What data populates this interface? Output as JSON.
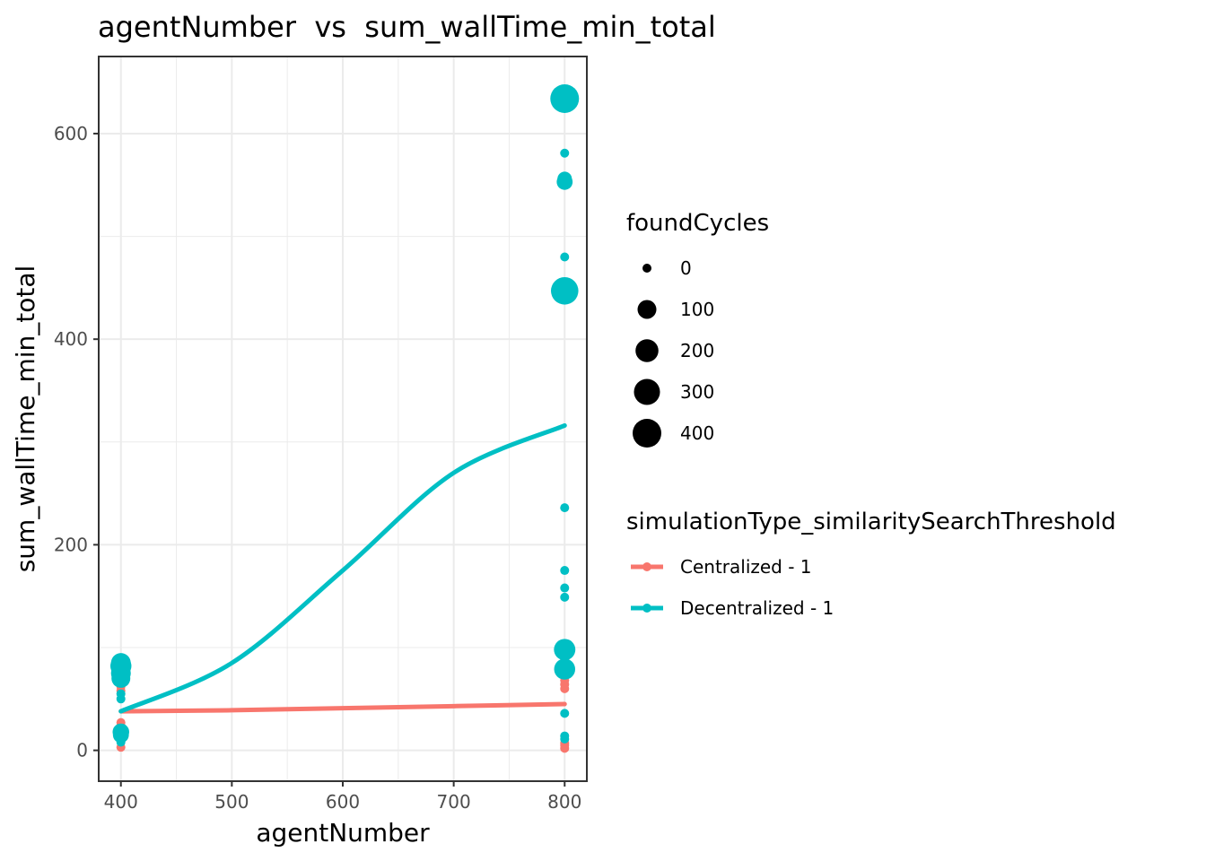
{
  "chart_data": {
    "type": "scatter",
    "title": "agentNumber  vs  sum_wallTime_min_total",
    "xlabel": "agentNumber",
    "ylabel": "sum_wallTime_min_total",
    "xlim": [
      380,
      820
    ],
    "ylim": [
      -30,
      675
    ],
    "xticks": [
      400,
      500,
      600,
      700,
      800
    ],
    "xtick_labels": [
      "400",
      "500",
      "600",
      "700",
      "800"
    ],
    "yticks": [
      0,
      200,
      400,
      600
    ],
    "ytick_labels": [
      "0",
      "200",
      "400",
      "600"
    ],
    "grid": true,
    "legend_position": "right",
    "size_legend": {
      "title": "foundCycles",
      "entries": [
        {
          "label": "0",
          "value": 0
        },
        {
          "label": "100",
          "value": 100
        },
        {
          "label": "200",
          "value": 200
        },
        {
          "label": "300",
          "value": 300
        },
        {
          "label": "400",
          "value": 400
        }
      ]
    },
    "color_legend": {
      "title": "simulationType_similaritySearchThreshold",
      "entries": [
        {
          "label": "Centralized - 1",
          "color": "#F8766D"
        },
        {
          "label": "Decentralized - 1",
          "color": "#00BFC4"
        }
      ]
    },
    "series": [
      {
        "name": "Centralized - 1",
        "color": "#F8766D",
        "points": [
          {
            "x": 400,
            "y": 3,
            "foundCycles": 0
          },
          {
            "x": 400,
            "y": 12,
            "foundCycles": 0
          },
          {
            "x": 400,
            "y": 20,
            "foundCycles": 0
          },
          {
            "x": 400,
            "y": 24,
            "foundCycles": 0
          },
          {
            "x": 400,
            "y": 27,
            "foundCycles": 0
          },
          {
            "x": 400,
            "y": 58,
            "foundCycles": 0
          },
          {
            "x": 400,
            "y": 62,
            "foundCycles": 0
          },
          {
            "x": 400,
            "y": 65,
            "foundCycles": 0
          },
          {
            "x": 800,
            "y": 2,
            "foundCycles": 0
          },
          {
            "x": 800,
            "y": 5,
            "foundCycles": 0
          },
          {
            "x": 800,
            "y": 7,
            "foundCycles": 0
          },
          {
            "x": 800,
            "y": 60,
            "foundCycles": 0
          },
          {
            "x": 800,
            "y": 64,
            "foundCycles": 0
          },
          {
            "x": 800,
            "y": 68,
            "foundCycles": 0
          },
          {
            "x": 800,
            "y": 72,
            "foundCycles": 0
          },
          {
            "x": 800,
            "y": 76,
            "foundCycles": 0
          },
          {
            "x": 800,
            "y": 88,
            "foundCycles": 0
          }
        ],
        "trend": {
          "x": [
            400,
            500,
            600,
            700,
            800
          ],
          "y": [
            38,
            39,
            41,
            43,
            45
          ]
        }
      },
      {
        "name": "Decentralized - 1",
        "color": "#00BFC4",
        "points": [
          {
            "x": 400,
            "y": 8,
            "foundCycles": 0
          },
          {
            "x": 400,
            "y": 15,
            "foundCycles": 50
          },
          {
            "x": 400,
            "y": 18,
            "foundCycles": 60
          },
          {
            "x": 400,
            "y": 50,
            "foundCycles": 0
          },
          {
            "x": 400,
            "y": 55,
            "foundCycles": 0
          },
          {
            "x": 400,
            "y": 70,
            "foundCycles": 100
          },
          {
            "x": 400,
            "y": 75,
            "foundCycles": 120
          },
          {
            "x": 400,
            "y": 82,
            "foundCycles": 150
          },
          {
            "x": 400,
            "y": 85,
            "foundCycles": 120
          },
          {
            "x": 800,
            "y": 11,
            "foundCycles": 0
          },
          {
            "x": 800,
            "y": 14,
            "foundCycles": 0
          },
          {
            "x": 800,
            "y": 36,
            "foundCycles": 0
          },
          {
            "x": 800,
            "y": 79,
            "foundCycles": 150
          },
          {
            "x": 800,
            "y": 98,
            "foundCycles": 160
          },
          {
            "x": 800,
            "y": 149,
            "foundCycles": 0
          },
          {
            "x": 800,
            "y": 158,
            "foundCycles": 0
          },
          {
            "x": 800,
            "y": 175,
            "foundCycles": 0
          },
          {
            "x": 800,
            "y": 236,
            "foundCycles": 0
          },
          {
            "x": 800,
            "y": 447,
            "foundCycles": 350
          },
          {
            "x": 800,
            "y": 480,
            "foundCycles": 0
          },
          {
            "x": 800,
            "y": 553,
            "foundCycles": 50
          },
          {
            "x": 800,
            "y": 556,
            "foundCycles": 30
          },
          {
            "x": 800,
            "y": 581,
            "foundCycles": 0
          },
          {
            "x": 800,
            "y": 634,
            "foundCycles": 400
          }
        ],
        "trend": {
          "x": [
            400,
            500,
            600,
            700,
            800
          ],
          "y": [
            38,
            85,
            175,
            270,
            316
          ]
        }
      }
    ]
  }
}
